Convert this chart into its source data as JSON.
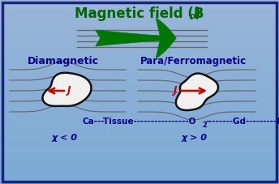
{
  "bg_grad_top": "#9ab5d8",
  "bg_grad_bottom": "#7aaad4",
  "border_color": "#1a237e",
  "title_color": "#006600",
  "label_color": "#00008b",
  "arrow_color": "#cc0000",
  "field_line_color": "#666666",
  "green_color": "#007700",
  "blob_fill": "#f0f0ee",
  "blob_border": "#111111",
  "left_label": "Diamagnetic",
  "right_label": "Para/Ferromagnetic",
  "bottom_text": "Ca---Tissue----------------O",
  "bottom_text2": "--------Gd---------Fe",
  "bottom_sub": "2",
  "left_chi": "χ < 0",
  "right_chi": "χ > 0",
  "fig_w": 3.44,
  "fig_h": 2.27,
  "dpi": 100
}
